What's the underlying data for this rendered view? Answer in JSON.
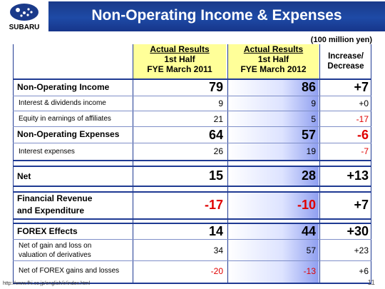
{
  "header": {
    "logo_text": "SUBARU",
    "title": "Non-Operating Income & Expenses"
  },
  "unit": "(100 million yen)",
  "columns": {
    "col1": {
      "line1": "Actual Results",
      "line2": "1st Half",
      "line3": "FYE March 2011"
    },
    "col2": {
      "line1": "Actual Results",
      "line2": "1st Half",
      "line3": "FYE March 2012"
    },
    "col3": {
      "line1": "Increase/",
      "line2": "Decrease"
    }
  },
  "rows": [
    {
      "label": "Non-Operating Income",
      "v1": "79",
      "v2": "86",
      "v3": "+7"
    },
    {
      "label": "Interest & dividends income",
      "v1": "9",
      "v2": "9",
      "v3": "+0"
    },
    {
      "label": "Equity in earnings of affiliates",
      "v1": "21",
      "v2": "5",
      "v3": "-17"
    },
    {
      "label": "Non-Operating Expenses",
      "v1": "64",
      "v2": "57",
      "v3": "-6"
    },
    {
      "label": "Interest expenses",
      "v1": "26",
      "v2": "19",
      "v3": "-7"
    },
    {
      "label": "Net",
      "v1": "15",
      "v2": "28",
      "v3": "+13"
    },
    {
      "label_line1": "Financial Revenue",
      "label_line2": "and Expenditure",
      "v1": "-17",
      "v2": "-10",
      "v3": "+7"
    },
    {
      "label": "FOREX Effects",
      "v1": "14",
      "v2": "44",
      "v3": "+30"
    },
    {
      "label_line1": "Net of gain and loss on",
      "label_line2": "valuation of derivatives",
      "v1": "34",
      "v2": "57",
      "v3": "+23"
    },
    {
      "label": "Net of FOREX gains and losses",
      "v1": "-20",
      "v2": "-13",
      "v3": "+6"
    }
  ],
  "footer": {
    "url": "http://www.fhi.co.jp/english/ir/index.html",
    "page": "11"
  }
}
